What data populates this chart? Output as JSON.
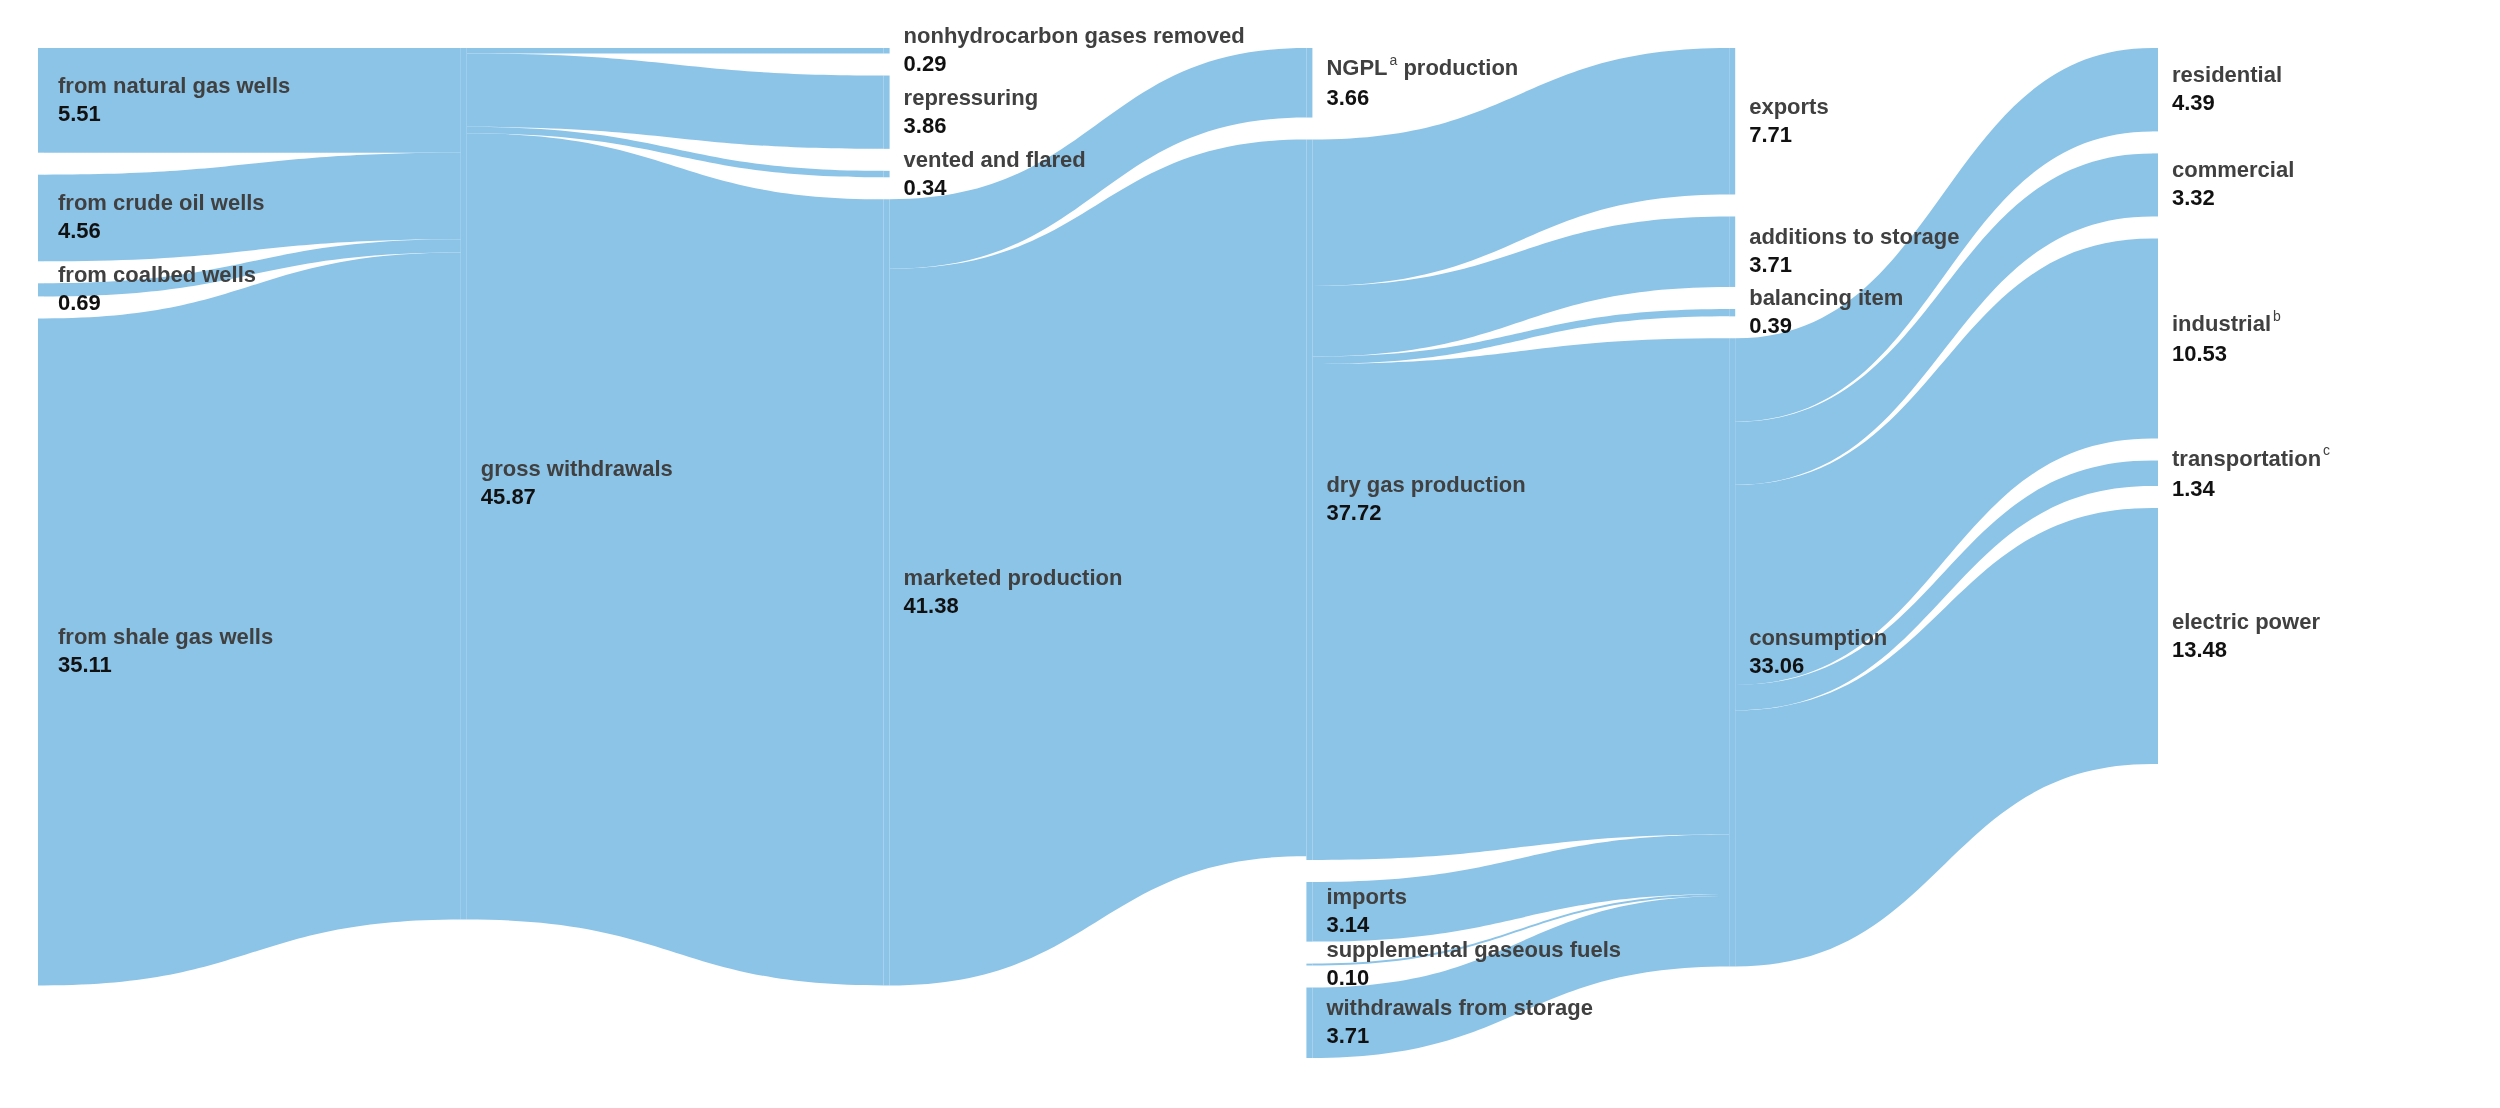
{
  "chart_data": {
    "type": "other",
    "color": "#8cc4e8",
    "categories": [
      "from natural gas wells",
      "from crude oil wells",
      "from coalbed wells",
      "from shale gas wells",
      "gross withdrawals",
      "nonhydrocarbon gases removed",
      "repressuring",
      "vented and flared",
      "marketed production",
      "NGPL$^{a}$ production",
      "dry gas production",
      "imports",
      "supplemental gaseous fuels",
      "withdrawals from storage",
      "exports",
      "additions to storage",
      "balancing item",
      "consumption",
      "residential",
      "commercial",
      "industrial$^{b}$",
      "transportation$^{c}$",
      "electric power"
    ],
    "values": [
      5.51,
      4.56,
      0.69,
      35.11,
      45.87,
      0.29,
      3.86,
      0.34,
      41.38,
      3.66,
      37.72,
      3.14,
      0.1,
      3.71,
      7.71,
      3.71,
      0.39,
      33.06,
      4.39,
      3.32,
      10.53,
      1.34,
      13.48
    ],
    "value_labels": [
      "5.51",
      "4.56",
      "0.69",
      "35.11",
      "45.87",
      "0.29",
      "3.86",
      "0.34",
      "41.38",
      "3.66",
      "37.72",
      "3.14",
      "0.10",
      "3.71",
      "7.71",
      "3.71",
      "0.39",
      "33.06",
      "4.39",
      "3.32",
      "10.53",
      "1.34",
      "13.48"
    ]
  }
}
